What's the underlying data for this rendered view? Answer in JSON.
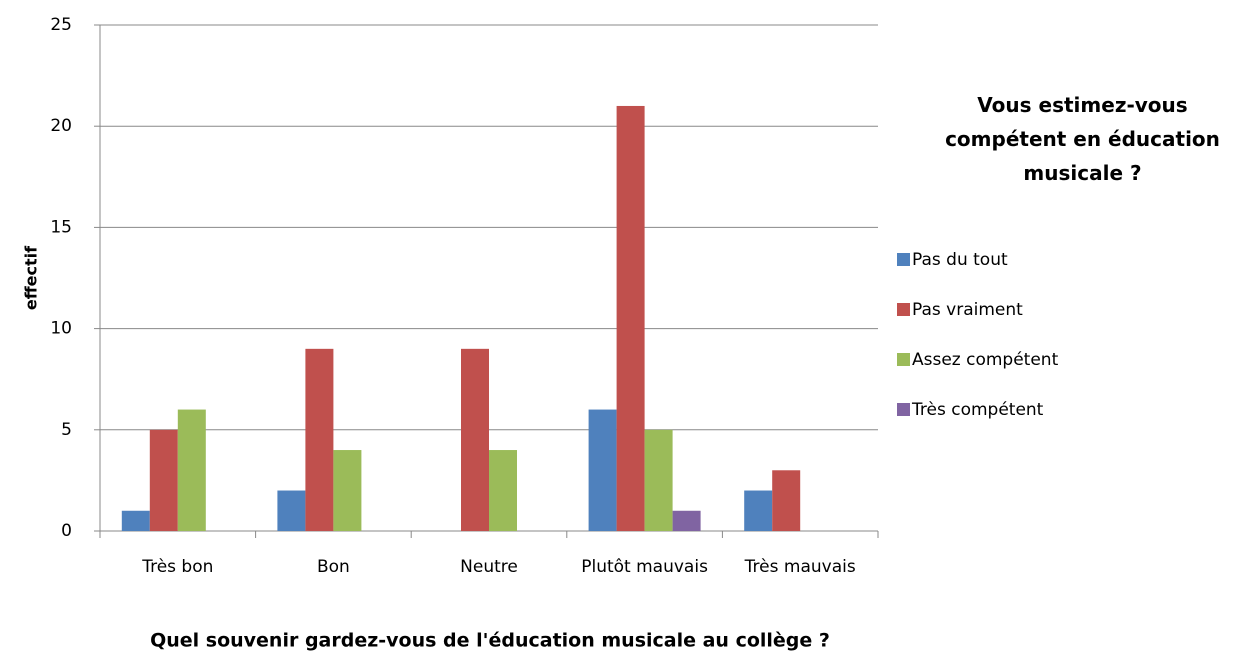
{
  "chart_data": {
    "type": "bar",
    "x_label": "Quel souvenir gardez-vous de l'éducation musicale au collège ?",
    "y_label": "effectif",
    "legend_title": "Vous estimez-vous compétent en éducation musicale ?",
    "categories": [
      "Très bon",
      "Bon",
      "Neutre",
      "Plutôt mauvais",
      "Très mauvais"
    ],
    "series": [
      {
        "name": "Pas du tout",
        "color": "#4f81bd",
        "values": [
          1,
          2,
          0,
          6,
          2
        ]
      },
      {
        "name": "Pas vraiment",
        "color": "#c0504d",
        "values": [
          5,
          9,
          9,
          21,
          3
        ]
      },
      {
        "name": "Assez compétent",
        "color": "#9bbb59",
        "values": [
          6,
          4,
          4,
          5,
          0
        ]
      },
      {
        "name": "Très compétent",
        "color": "#8064a2",
        "values": [
          0,
          0,
          0,
          1,
          0
        ]
      }
    ],
    "ylim": [
      0,
      25
    ],
    "yticks": [
      0,
      5,
      10,
      15,
      20,
      25
    ],
    "grid": true,
    "legend": "right"
  }
}
